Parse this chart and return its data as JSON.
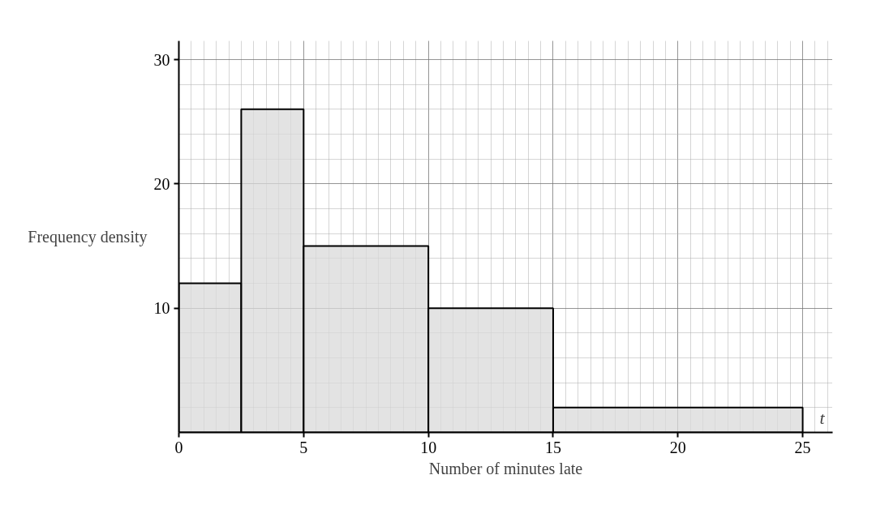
{
  "chart_data": {
    "type": "histogram",
    "xlabel": "Number of minutes late",
    "ylabel": "Frequency density",
    "bins": [
      0,
      2.5,
      5,
      10,
      15,
      25
    ],
    "values": [
      12,
      26,
      15,
      10,
      2
    ],
    "color": "#d9d9d9",
    "xlim": [
      0,
      26.2
    ],
    "ylim": [
      0,
      31.5
    ],
    "xticks": [
      0,
      5,
      10,
      15,
      20,
      25
    ],
    "yticks": [
      10,
      20,
      30
    ],
    "grid": true,
    "annotations": [
      "t"
    ]
  }
}
